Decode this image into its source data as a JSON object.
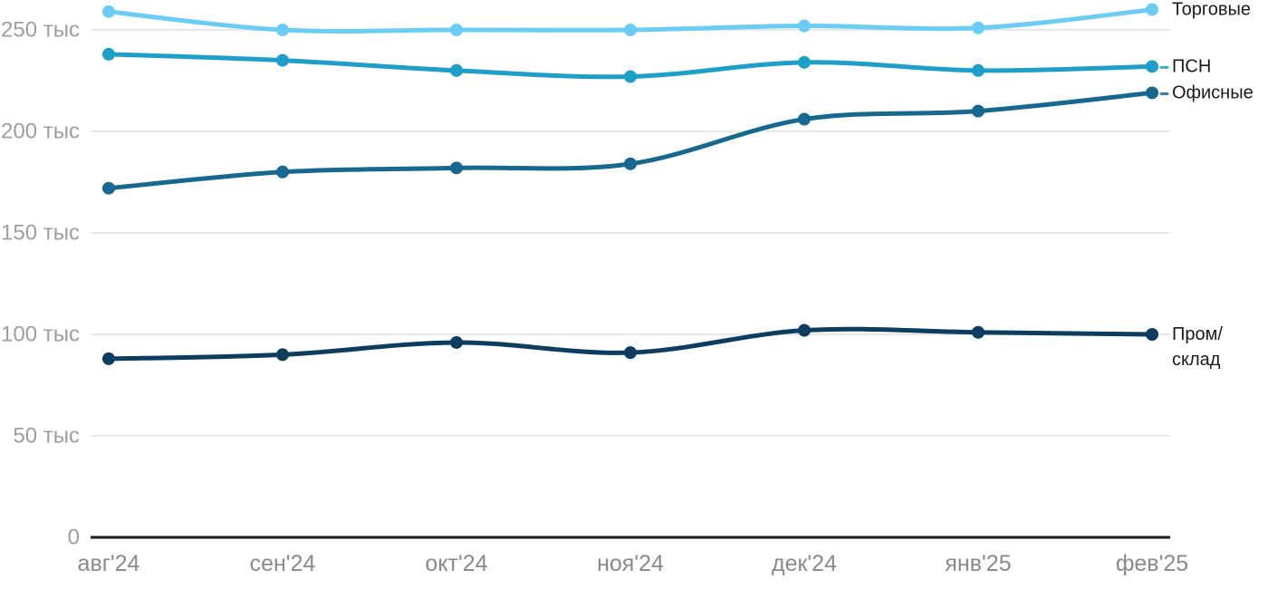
{
  "chart_data": {
    "type": "line",
    "title": "",
    "xlabel": "",
    "ylabel": "",
    "unit_suffix": "тыс",
    "grid": "horizontal",
    "legend_position": "right-line-end-labels",
    "ylim": [
      0,
      265
    ],
    "categories": [
      "авг'24",
      "сен'24",
      "окт'24",
      "ноя'24",
      "дек'24",
      "янв'25",
      "фев'25"
    ],
    "series": [
      {
        "key": "retail",
        "name": "Торговые",
        "label_lines": [
          "Торговые"
        ],
        "color": "#6bcdf3",
        "leader_dash": false,
        "values": [
          259,
          250,
          250,
          250,
          252,
          251,
          260
        ]
      },
      {
        "key": "psn",
        "name": "ПСН",
        "label_lines": [
          "ПСН"
        ],
        "color": "#1d9fc9",
        "leader_dash": true,
        "values": [
          238,
          235,
          230,
          227,
          234,
          230,
          232
        ]
      },
      {
        "key": "office",
        "name": "Офисные",
        "label_lines": [
          "Офисные"
        ],
        "color": "#16688e",
        "leader_dash": true,
        "values": [
          172,
          180,
          182,
          184,
          206,
          210,
          219
        ]
      },
      {
        "key": "industrial-warehouse",
        "name": "Пром/склад",
        "label_lines": [
          "Пром/",
          "склад"
        ],
        "color": "#0c3c5e",
        "leader_dash": false,
        "values": [
          88,
          90,
          96,
          91,
          102,
          101,
          100
        ]
      }
    ],
    "y_ticks": [
      {
        "value": 0,
        "label": "0"
      },
      {
        "value": 50,
        "label": "50 тыс"
      },
      {
        "value": 100,
        "label": "100 тыс"
      },
      {
        "value": 150,
        "label": "150 тыс"
      },
      {
        "value": 200,
        "label": "200 тыс"
      },
      {
        "value": 250,
        "label": "250 тыс"
      }
    ],
    "colors": {
      "background": "#ffffff",
      "gridline": "#e8e8e8",
      "baseline": "#1a1a1a",
      "y_axis_text": "#9e9e9e",
      "x_axis_text": "#8a8a8a",
      "series_label_text": "#1a1a1a"
    }
  }
}
